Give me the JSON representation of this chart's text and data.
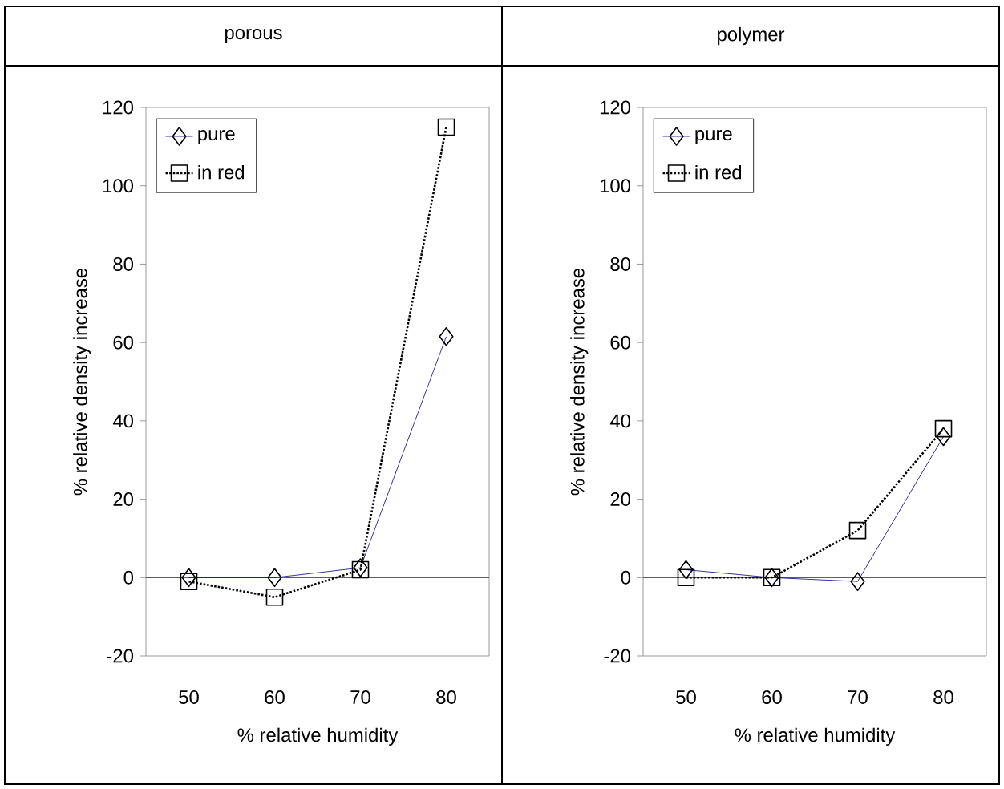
{
  "chart_data": [
    {
      "type": "line",
      "title": "porous",
      "xlabel": "% relative humidity",
      "ylabel": "% relative density increase",
      "categories": [
        "50",
        "60",
        "70",
        "80"
      ],
      "ylim": [
        -20,
        120
      ],
      "yticks": [
        -20,
        0,
        20,
        40,
        60,
        80,
        100,
        120
      ],
      "legend": "top left",
      "grid": false,
      "ref_lines": [
        {
          "axis": "y",
          "value": 0,
          "color": "#000000"
        }
      ],
      "series": [
        {
          "name": "pure",
          "color": "#000080",
          "marker": "diamond",
          "line_style": "solid",
          "values": [
            0,
            0,
            2.5,
            61.5
          ]
        },
        {
          "name": "in red",
          "color": "#000000",
          "marker": "square",
          "line_style": "dotted",
          "values": [
            -1,
            -5,
            2,
            115
          ]
        }
      ]
    },
    {
      "type": "line",
      "title": "polymer",
      "xlabel": "% relative humidity",
      "ylabel": "% relative density increase",
      "categories": [
        "50",
        "60",
        "70",
        "80"
      ],
      "ylim": [
        -20,
        120
      ],
      "yticks": [
        -20,
        0,
        20,
        40,
        60,
        80,
        100,
        120
      ],
      "legend": "top left",
      "grid": false,
      "ref_lines": [
        {
          "axis": "y",
          "value": 0,
          "color": "#000000"
        }
      ],
      "series": [
        {
          "name": "pure",
          "color": "#000080",
          "marker": "diamond",
          "line_style": "solid",
          "values": [
            2,
            0,
            -1,
            36
          ]
        },
        {
          "name": "in red",
          "color": "#000000",
          "marker": "square",
          "line_style": "dotted",
          "values": [
            0,
            0,
            12,
            38
          ]
        }
      ]
    }
  ]
}
